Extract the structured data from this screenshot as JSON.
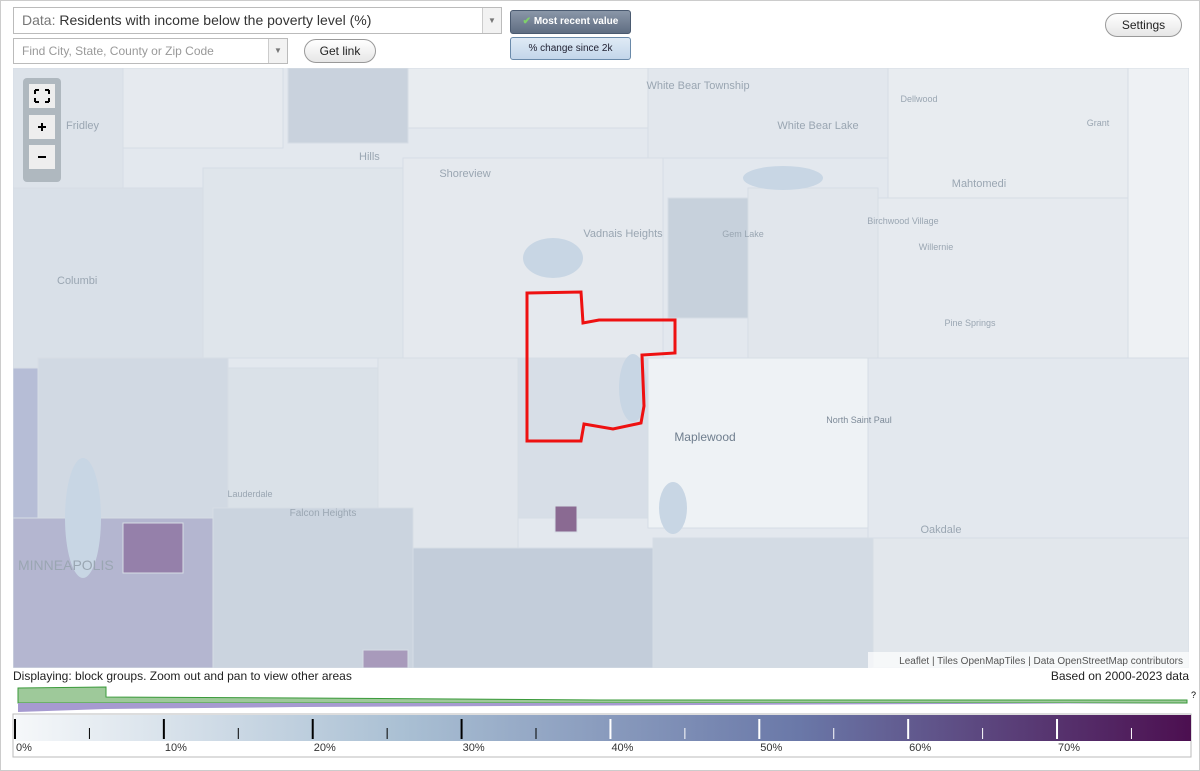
{
  "toolbar": {
    "data_label": "Data:",
    "data_value": "Residents with income below the poverty level (%)",
    "search_placeholder": "Find City, State, County or Zip Code",
    "get_link": "Get link",
    "most_recent": "Most recent value",
    "change": "% change since 2k",
    "settings": "Settings"
  },
  "map": {
    "labels": [
      "White Bear Township",
      "Dellwood",
      "Fridley",
      "White Bear Lake",
      "Grant",
      "Hills",
      "Shoreview",
      "Mahtomedi",
      "Birchwood Village",
      "Vadnais Heights",
      "Gem Lake",
      "Willernie",
      "Columbi",
      "Pine Springs",
      "North Saint Paul",
      "Maplewood",
      "Lauderdale",
      "Falcon Heights",
      "Oakdale",
      "MINNEAPOLIS"
    ],
    "attribution": "Leaflet | Tiles OpenMapTiles | Data OpenStreetMap contributors"
  },
  "status": {
    "displaying": "Displaying: block groups. Zoom out and pan to view other areas",
    "based_on": "Based on 2000-2023 data",
    "help": "?"
  },
  "legend": {
    "range": [
      0,
      79
    ],
    "colors": [
      "#f6f8fa",
      "#a9bfd3",
      "#6a78a8",
      "#4c0f50"
    ],
    "ticks": [
      {
        "value": 0,
        "label": "0%"
      },
      {
        "value": 10,
        "label": "10%"
      },
      {
        "value": 20,
        "label": "20%"
      },
      {
        "value": 30,
        "label": "30%"
      },
      {
        "value": 40,
        "label": "40%"
      },
      {
        "value": 50,
        "label": "50%"
      },
      {
        "value": 60,
        "label": "60%"
      },
      {
        "value": 70,
        "label": "70%"
      }
    ],
    "minor_ticks": [
      5,
      15,
      25,
      35,
      45,
      55,
      65,
      75
    ]
  }
}
